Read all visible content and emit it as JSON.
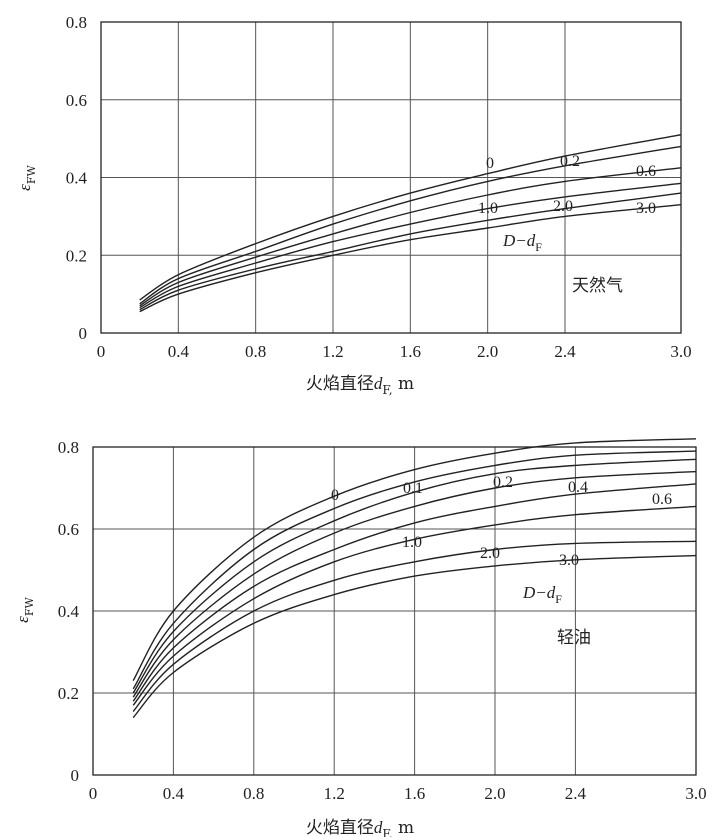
{
  "chart_data": [
    {
      "type": "line",
      "xlabel_main": "火焰直径",
      "xlabel_var": "d",
      "xlabel_sub": "F,",
      "xlabel_unit": " m",
      "ylabel_main": "ε",
      "ylabel_sub": "FW",
      "xlim": [
        0,
        3.0
      ],
      "ylim": [
        0,
        0.8
      ],
      "x_ticks": [
        0,
        0.4,
        0.8,
        1.2,
        1.6,
        2.0,
        2.4,
        3.0
      ],
      "x_tick_labels": [
        "0",
        "0.4",
        "0.8",
        "1.2",
        "1.6",
        "2.0",
        "2.4",
        "3.0"
      ],
      "y_ticks": [
        0,
        0.2,
        0.4,
        0.6,
        0.8
      ],
      "y_tick_labels": [
        "0",
        "0.2",
        "0.4",
        "0.6",
        "0.8"
      ],
      "grid": true,
      "parameter_label_main": "D−d",
      "parameter_label_sub": "F",
      "note": "天然气",
      "series": [
        {
          "name": "0",
          "x": [
            0.2,
            0.4,
            0.8,
            1.2,
            1.6,
            2.0,
            2.4,
            3.0
          ],
          "y": [
            0.085,
            0.15,
            0.23,
            0.3,
            0.36,
            0.41,
            0.455,
            0.51
          ]
        },
        {
          "name": "0.2",
          "x": [
            0.2,
            0.4,
            0.8,
            1.2,
            1.6,
            2.0,
            2.4,
            3.0
          ],
          "y": [
            0.075,
            0.14,
            0.21,
            0.28,
            0.34,
            0.39,
            0.43,
            0.48
          ]
        },
        {
          "name": "0.6",
          "x": [
            0.2,
            0.4,
            0.8,
            1.2,
            1.6,
            2.0,
            2.4,
            3.0
          ],
          "y": [
            0.07,
            0.13,
            0.195,
            0.255,
            0.31,
            0.355,
            0.39,
            0.425
          ]
        },
        {
          "name": "1.0",
          "x": [
            0.2,
            0.4,
            0.8,
            1.2,
            1.6,
            2.0,
            2.4,
            3.0
          ],
          "y": [
            0.065,
            0.12,
            0.18,
            0.235,
            0.28,
            0.32,
            0.35,
            0.385
          ]
        },
        {
          "name": "2.0",
          "x": [
            0.2,
            0.4,
            0.8,
            1.2,
            1.6,
            2.0,
            2.4,
            3.0
          ],
          "y": [
            0.06,
            0.11,
            0.165,
            0.21,
            0.255,
            0.29,
            0.32,
            0.36
          ]
        },
        {
          "name": "3.0",
          "x": [
            0.2,
            0.4,
            0.8,
            1.2,
            1.6,
            2.0,
            2.4,
            3.0
          ],
          "y": [
            0.055,
            0.1,
            0.155,
            0.2,
            0.24,
            0.27,
            0.3,
            0.33
          ]
        }
      ]
    },
    {
      "type": "line",
      "xlabel_main": "火焰直径",
      "xlabel_var": "d",
      "xlabel_sub": "F,",
      "xlabel_unit": " m",
      "ylabel_main": "ε",
      "ylabel_sub": "FW",
      "xlim": [
        0,
        3.0
      ],
      "ylim": [
        0,
        0.8
      ],
      "x_ticks": [
        0,
        0.4,
        0.8,
        1.2,
        1.6,
        2.0,
        2.4,
        3.0
      ],
      "x_tick_labels": [
        "0",
        "0.4",
        "0.8",
        "1.2",
        "1.6",
        "2.0",
        "2.4",
        "3.0"
      ],
      "y_ticks": [
        0,
        0.2,
        0.4,
        0.6,
        0.8
      ],
      "y_tick_labels": [
        "0",
        "0.2",
        "0.4",
        "0.6",
        "0.8"
      ],
      "grid": true,
      "parameter_label_main": "D−d",
      "parameter_label_sub": "F",
      "note": "轻油",
      "series": [
        {
          "name": "0",
          "x": [
            0.2,
            0.4,
            0.8,
            1.2,
            1.6,
            2.0,
            2.4,
            3.0
          ],
          "y": [
            0.23,
            0.4,
            0.58,
            0.68,
            0.745,
            0.785,
            0.81,
            0.82
          ]
        },
        {
          "name": "0.1",
          "x": [
            0.2,
            0.4,
            0.8,
            1.2,
            1.6,
            2.0,
            2.4,
            3.0
          ],
          "y": [
            0.21,
            0.37,
            0.55,
            0.65,
            0.715,
            0.755,
            0.78,
            0.79
          ]
        },
        {
          "name": "0.2",
          "x": [
            0.2,
            0.4,
            0.8,
            1.2,
            1.6,
            2.0,
            2.4,
            3.0
          ],
          "y": [
            0.2,
            0.35,
            0.52,
            0.62,
            0.69,
            0.735,
            0.755,
            0.77
          ]
        },
        {
          "name": "0.4",
          "x": [
            0.2,
            0.4,
            0.8,
            1.2,
            1.6,
            2.0,
            2.4,
            3.0
          ],
          "y": [
            0.19,
            0.33,
            0.49,
            0.59,
            0.655,
            0.7,
            0.725,
            0.74
          ]
        },
        {
          "name": "0.6",
          "x": [
            0.2,
            0.4,
            0.8,
            1.2,
            1.6,
            2.0,
            2.4,
            3.0
          ],
          "y": [
            0.18,
            0.31,
            0.46,
            0.55,
            0.615,
            0.655,
            0.685,
            0.71
          ]
        },
        {
          "name": "1.0",
          "x": [
            0.2,
            0.4,
            0.8,
            1.2,
            1.6,
            2.0,
            2.4,
            3.0
          ],
          "y": [
            0.17,
            0.29,
            0.43,
            0.52,
            0.575,
            0.61,
            0.635,
            0.655
          ]
        },
        {
          "name": "2.0",
          "x": [
            0.2,
            0.4,
            0.8,
            1.2,
            1.6,
            2.0,
            2.4,
            3.0
          ],
          "y": [
            0.155,
            0.27,
            0.4,
            0.475,
            0.52,
            0.55,
            0.565,
            0.57
          ]
        },
        {
          "name": "3.0",
          "x": [
            0.2,
            0.4,
            0.8,
            1.2,
            1.6,
            2.0,
            2.4,
            3.0
          ],
          "y": [
            0.14,
            0.25,
            0.37,
            0.44,
            0.485,
            0.51,
            0.525,
            0.535
          ]
        }
      ]
    }
  ]
}
